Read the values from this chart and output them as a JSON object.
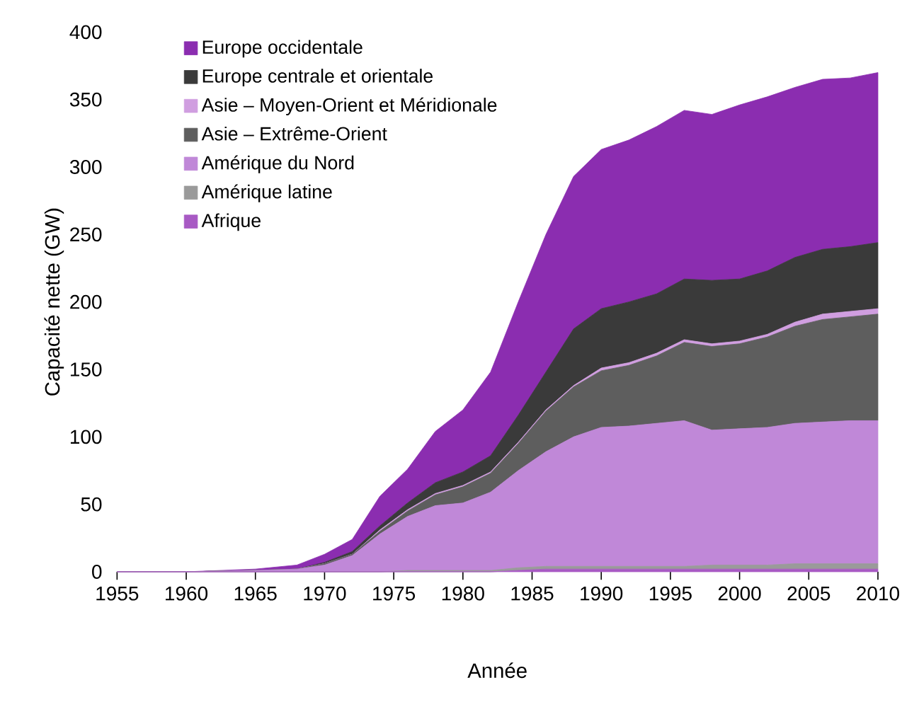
{
  "chart_data": {
    "type": "area",
    "stacked": true,
    "xlabel": "Année",
    "ylabel": "Capacité nette (GW)",
    "x": [
      1955,
      1960,
      1965,
      1968,
      1970,
      1972,
      1974,
      1976,
      1978,
      1980,
      1982,
      1984,
      1986,
      1988,
      1990,
      1992,
      1994,
      1996,
      1998,
      2000,
      2002,
      2004,
      2006,
      2008,
      2010
    ],
    "series": [
      {
        "name": "Afrique",
        "color": "#a85ac4",
        "values": [
          0,
          0,
          0,
          0,
          0,
          0,
          0,
          0,
          0,
          0,
          0,
          1,
          2,
          2,
          2,
          2,
          2,
          2,
          2,
          2,
          2,
          2,
          2,
          2,
          2
        ]
      },
      {
        "name": "Amérique latine",
        "color": "#9a9a9a",
        "values": [
          0,
          0,
          0,
          0,
          0,
          0,
          0,
          1,
          1,
          1,
          1,
          2,
          2,
          2,
          2,
          2,
          2,
          2,
          3,
          3,
          3,
          4,
          4,
          4,
          4
        ]
      },
      {
        "name": "Amérique du Nord",
        "color": "#c088d8",
        "values": [
          0,
          0,
          1,
          2,
          5,
          12,
          28,
          40,
          48,
          50,
          58,
          72,
          85,
          96,
          103,
          104,
          106,
          108,
          100,
          101,
          102,
          104,
          105,
          106,
          106
        ]
      },
      {
        "name": "Asie – Extrême-Orient",
        "color": "#5e5e5e",
        "values": [
          0,
          0,
          0,
          0,
          1,
          1,
          2,
          4,
          8,
          12,
          14,
          20,
          30,
          37,
          42,
          45,
          50,
          58,
          62,
          63,
          67,
          72,
          76,
          77,
          79
        ]
      },
      {
        "name": "Asie – Moyen-Orient et Méridionale",
        "color": "#d09ee0",
        "values": [
          0,
          0,
          0,
          0,
          0,
          0,
          1,
          1,
          1,
          1,
          1,
          1,
          1,
          1,
          2,
          2,
          2,
          2,
          2,
          2,
          2,
          3,
          4,
          4,
          4
        ]
      },
      {
        "name": "Europe centrale et orientale",
        "color": "#3a3a3a",
        "values": [
          0,
          0,
          0,
          0,
          1,
          2,
          3,
          5,
          8,
          10,
          12,
          20,
          28,
          42,
          44,
          45,
          44,
          45,
          47,
          46,
          47,
          48,
          48,
          48,
          49
        ]
      },
      {
        "name": "Europe occidentale",
        "color": "#8b2db0",
        "values": [
          0,
          0,
          1,
          3,
          6,
          9,
          22,
          25,
          38,
          46,
          62,
          84,
          102,
          113,
          118,
          120,
          124,
          125,
          123,
          129,
          129,
          126,
          126,
          125,
          126
        ]
      }
    ],
    "xlim": [
      1955,
      2010
    ],
    "xticks": [
      1955,
      1960,
      1965,
      1970,
      1975,
      1980,
      1985,
      1990,
      1995,
      2000,
      2005,
      2010
    ],
    "ylim": [
      0,
      400
    ],
    "yticks": [
      0,
      50,
      100,
      150,
      200,
      250,
      300,
      350,
      400
    ],
    "legend": "top left",
    "grid": false
  }
}
